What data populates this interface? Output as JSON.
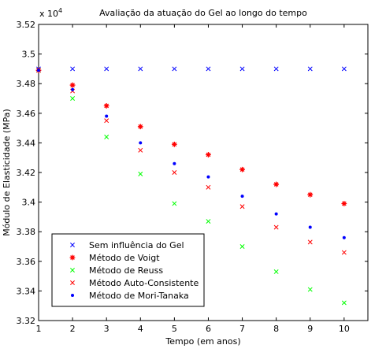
{
  "chart_data": {
    "type": "scatter",
    "title": "Avaliação da atuação do Gel ao longo do tempo",
    "xlabel": "Tempo (em anos)",
    "ylabel": "Módulo de Elasticidade (MPa)",
    "y_exponent_label": "x 10",
    "y_exponent_power": "4",
    "xlim": [
      1,
      10.7
    ],
    "ylim": [
      3.32,
      3.52
    ],
    "y_scale_factor": 10000,
    "grid": false,
    "legend_position": "lower-left",
    "xticks": [
      {
        "value": 1,
        "label": "1"
      },
      {
        "value": 2,
        "label": "2"
      },
      {
        "value": 3,
        "label": "3"
      },
      {
        "value": 4,
        "label": "4"
      },
      {
        "value": 5,
        "label": "5"
      },
      {
        "value": 6,
        "label": "6"
      },
      {
        "value": 7,
        "label": "7"
      },
      {
        "value": 8,
        "label": "8"
      },
      {
        "value": 9,
        "label": "9"
      },
      {
        "value": 10,
        "label": "10"
      }
    ],
    "yticks": [
      {
        "value": 3.32,
        "label": "3.32"
      },
      {
        "value": 3.34,
        "label": "3.34"
      },
      {
        "value": 3.36,
        "label": "3.36"
      },
      {
        "value": 3.38,
        "label": "3.38"
      },
      {
        "value": 3.4,
        "label": "3.4"
      },
      {
        "value": 3.42,
        "label": "3.42"
      },
      {
        "value": 3.44,
        "label": "3.44"
      },
      {
        "value": 3.46,
        "label": "3.46"
      },
      {
        "value": 3.48,
        "label": "3.48"
      },
      {
        "value": 3.5,
        "label": "3.5"
      },
      {
        "value": 3.52,
        "label": "3.52"
      }
    ],
    "x": [
      1,
      2,
      3,
      4,
      5,
      6,
      7,
      8,
      9,
      10
    ],
    "series": [
      {
        "name": "Sem influência do Gel",
        "marker": "x",
        "color": "#0000ff",
        "values": [
          3.49,
          3.49,
          3.49,
          3.49,
          3.49,
          3.49,
          3.49,
          3.49,
          3.49,
          3.49
        ]
      },
      {
        "name": "Método de Voigt",
        "marker": "star",
        "color": "#ff0000",
        "values": [
          3.489,
          3.479,
          3.465,
          3.451,
          3.439,
          3.432,
          3.422,
          3.412,
          3.405,
          3.399
        ]
      },
      {
        "name": "Método de Reuss",
        "marker": "x",
        "color": "#00ff00",
        "values": [
          3.489,
          3.47,
          3.444,
          3.419,
          3.399,
          3.387,
          3.37,
          3.353,
          3.341,
          3.332
        ]
      },
      {
        "name": "Método Auto-Consistente",
        "marker": "x",
        "color": "#ff0000",
        "values": [
          3.489,
          3.475,
          3.455,
          3.435,
          3.42,
          3.41,
          3.397,
          3.383,
          3.373,
          3.366
        ]
      },
      {
        "name": "Método de Mori-Tanaka",
        "marker": "dot",
        "color": "#0000ff",
        "values": [
          3.489,
          3.476,
          3.458,
          3.44,
          3.426,
          3.417,
          3.404,
          3.392,
          3.383,
          3.376
        ]
      }
    ]
  }
}
